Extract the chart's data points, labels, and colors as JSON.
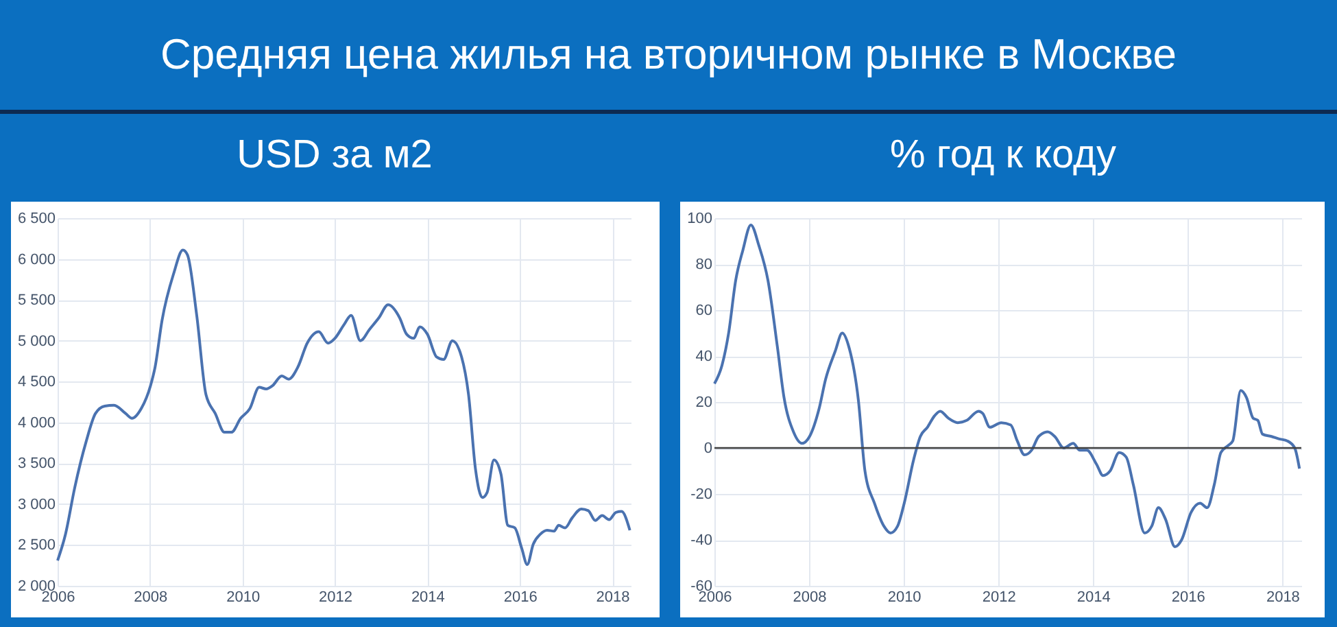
{
  "chart_data": [
    {
      "type": "line",
      "title": "Средняя цена жилья на вторичном рынке в Москве",
      "subtitle": "USD за м2",
      "grid": true,
      "xlim": [
        2006,
        2018.4
      ],
      "xticks": [
        2006,
        2008,
        2010,
        2012,
        2014,
        2016,
        2018
      ],
      "ylim": [
        2000,
        6500
      ],
      "yticks": [
        {
          "value": 2000,
          "label": "2 000"
        },
        {
          "value": 2500,
          "label": "2 500"
        },
        {
          "value": 3000,
          "label": "3 000"
        },
        {
          "value": 3500,
          "label": "3 500"
        },
        {
          "value": 4000,
          "label": "4 000"
        },
        {
          "value": 4500,
          "label": "4 500"
        },
        {
          "value": 5000,
          "label": "5 000"
        },
        {
          "value": 5500,
          "label": "5 500"
        },
        {
          "value": 6000,
          "label": "6 000"
        },
        {
          "value": 6500,
          "label": "6 500"
        }
      ],
      "series": [
        {
          "color": "#4a72b0",
          "x": [
            2006.0,
            2006.17,
            2006.37,
            2006.62,
            2006.82,
            2007.02,
            2007.22,
            2007.47,
            2007.61,
            2007.81,
            2008.01,
            2008.11,
            2008.26,
            2008.51,
            2008.71,
            2008.81,
            2009.01,
            2009.21,
            2009.41,
            2009.61,
            2009.76,
            2009.96,
            2010.16,
            2010.36,
            2010.51,
            2010.65,
            2010.85,
            2011.0,
            2011.2,
            2011.4,
            2011.65,
            2011.85,
            2012.0,
            2012.2,
            2012.35,
            2012.55,
            2012.75,
            2012.95,
            2013.15,
            2013.4,
            2013.55,
            2013.7,
            2013.84,
            2014.0,
            2014.2,
            2014.35,
            2014.54,
            2014.74,
            2014.89,
            2015.04,
            2015.19,
            2015.29,
            2015.44,
            2015.59,
            2015.74,
            2015.89,
            2016.04,
            2016.16,
            2016.29,
            2016.44,
            2016.59,
            2016.74,
            2016.84,
            2016.98,
            2017.13,
            2017.33,
            2017.48,
            2017.63,
            2017.78,
            2017.93,
            2018.08,
            2018.2,
            2018.38
          ],
          "values": [
            2310,
            2630,
            3200,
            3770,
            4110,
            4200,
            4210,
            4110,
            4050,
            4170,
            4450,
            4680,
            5250,
            5820,
            6110,
            6050,
            5310,
            4340,
            4110,
            3880,
            3880,
            4050,
            4170,
            4430,
            4410,
            4450,
            4570,
            4530,
            4680,
            4970,
            5110,
            4970,
            5030,
            5200,
            5310,
            5000,
            5140,
            5280,
            5440,
            5280,
            5080,
            5030,
            5170,
            5080,
            4800,
            4770,
            5000,
            4800,
            4340,
            3430,
            3080,
            3140,
            3540,
            3370,
            2740,
            2710,
            2460,
            2260,
            2510,
            2630,
            2680,
            2670,
            2740,
            2710,
            2830,
            2940,
            2920,
            2800,
            2860,
            2810,
            2900,
            2910,
            2680
          ]
        }
      ]
    },
    {
      "type": "line",
      "subtitle": "% год к коду",
      "grid": true,
      "xlim": [
        2006,
        2018.4
      ],
      "xticks": [
        2006,
        2008,
        2010,
        2012,
        2014,
        2016,
        2018
      ],
      "ylim": [
        -60,
        100
      ],
      "yticks": [
        -60,
        -40,
        -20,
        0,
        20,
        40,
        60,
        80,
        100
      ],
      "ref_lines": [
        {
          "axis": "y",
          "value": 0,
          "color": "#404040"
        }
      ],
      "series": [
        {
          "color": "#4a72b0",
          "x": [
            2006.0,
            2006.16,
            2006.3,
            2006.45,
            2006.6,
            2006.77,
            2006.94,
            2007.13,
            2007.33,
            2007.47,
            2007.67,
            2007.85,
            2008.01,
            2008.21,
            2008.35,
            2008.55,
            2008.7,
            2008.84,
            2009.04,
            2009.18,
            2009.38,
            2009.58,
            2009.72,
            2009.87,
            2010.01,
            2010.21,
            2010.35,
            2010.5,
            2010.65,
            2010.77,
            2010.94,
            2011.14,
            2011.33,
            2011.58,
            2011.67,
            2011.82,
            2012.06,
            2012.26,
            2012.4,
            2012.55,
            2012.7,
            2012.85,
            2013.04,
            2013.19,
            2013.38,
            2013.58,
            2013.72,
            2013.87,
            2014.07,
            2014.21,
            2014.36,
            2014.55,
            2014.7,
            2014.85,
            2015.09,
            2015.24,
            2015.38,
            2015.53,
            2015.73,
            2015.87,
            2016.07,
            2016.26,
            2016.41,
            2016.56,
            2016.7,
            2016.85,
            2016.95,
            2017.12,
            2017.24,
            2017.38,
            2017.48,
            2017.58,
            2017.77,
            2017.92,
            2018.11,
            2018.26,
            2018.36
          ],
          "values": [
            28,
            36,
            50,
            73,
            86,
            97,
            88,
            73,
            44,
            22,
            7,
            2,
            5,
            17,
            30,
            42,
            50,
            44,
            21,
            -10,
            -24,
            -34,
            -37,
            -34,
            -24,
            -5,
            5,
            9,
            14,
            16,
            13,
            11,
            12,
            16,
            15,
            9,
            11,
            10,
            3,
            -3,
            -1,
            5,
            7,
            5,
            0,
            2,
            -1,
            -1,
            -7,
            -12,
            -10,
            -2,
            -4,
            -16,
            -37,
            -34,
            -26,
            -31,
            -43,
            -40,
            -28,
            -24,
            -26,
            -16,
            -2,
            1,
            3,
            25,
            22,
            13,
            12,
            6,
            5,
            4,
            3,
            0,
            -9
          ]
        }
      ]
    }
  ]
}
